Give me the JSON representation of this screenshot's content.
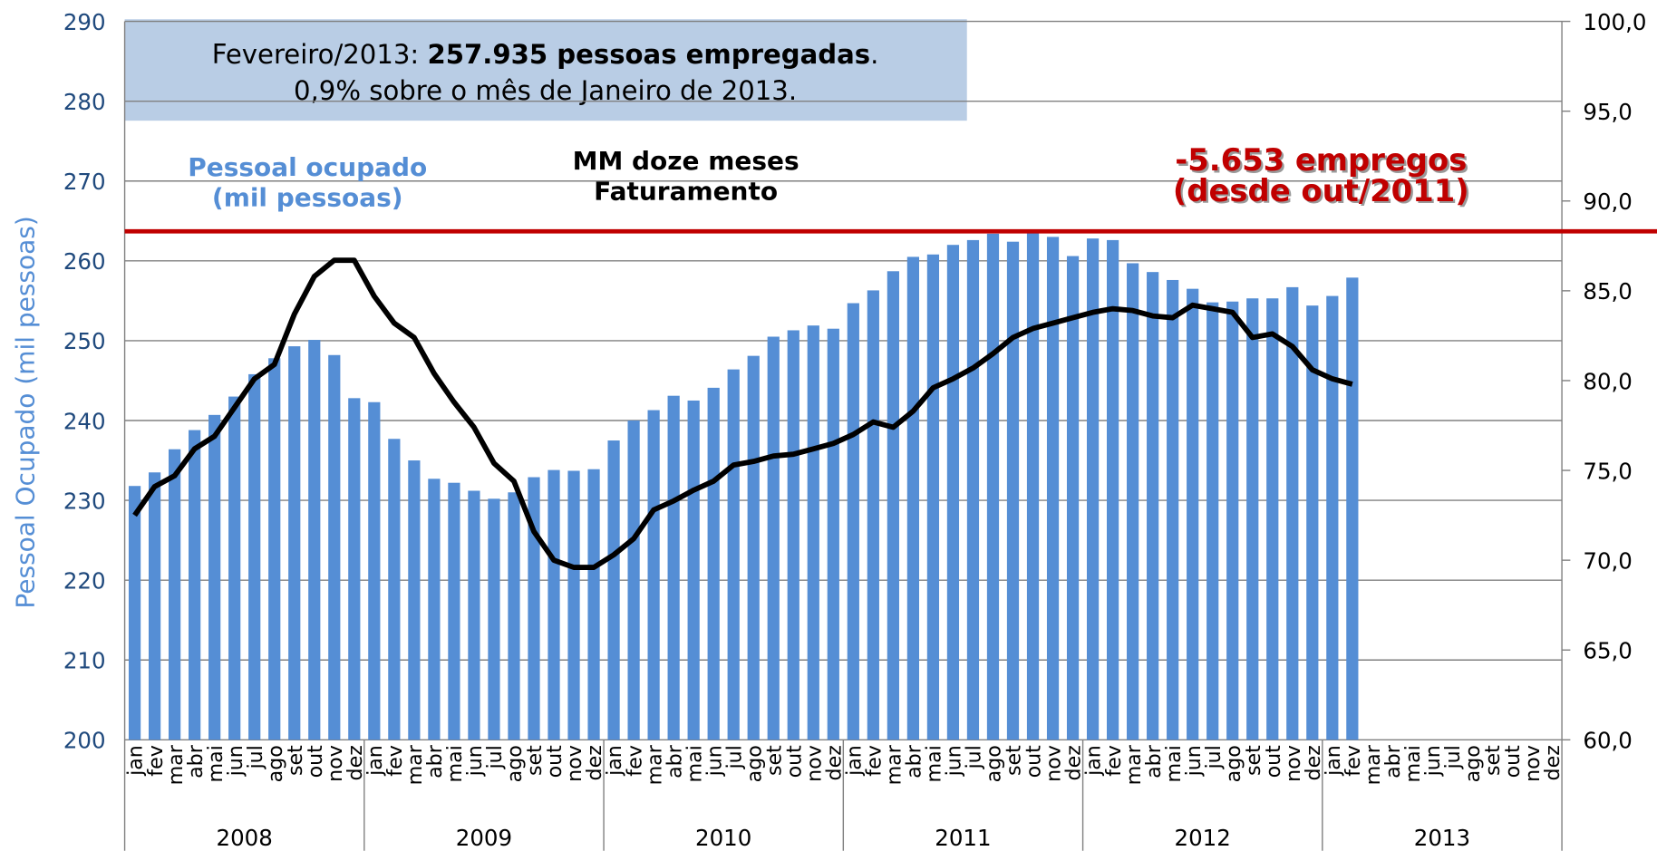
{
  "chart_data": {
    "type": "bar_line",
    "ylabel": "Pessoal Ocupado (mil pessoas)",
    "ylim": [
      200,
      290
    ],
    "yticks": [
      200,
      210,
      220,
      230,
      240,
      250,
      260,
      270,
      280,
      290
    ],
    "y2lim": [
      60,
      100
    ],
    "y2ticks": [
      {
        "value": 60,
        "label": "60,0"
      },
      {
        "value": 65,
        "label": "65,0"
      },
      {
        "value": 70,
        "label": "70,0"
      },
      {
        "value": 75,
        "label": "75,0"
      },
      {
        "value": 80,
        "label": "80,0"
      },
      {
        "value": 85,
        "label": "85,0"
      },
      {
        "value": 90,
        "label": "90,0"
      },
      {
        "value": 95,
        "label": "95,0"
      },
      {
        "value": 100,
        "label": "100,0"
      }
    ],
    "grid": true,
    "years": [
      "2008",
      "2009",
      "2010",
      "2011",
      "2012",
      "2013"
    ],
    "categories": [
      "jan",
      "fev",
      "mar",
      "abr",
      "mai",
      "jun",
      "jul",
      "ago",
      "set",
      "out",
      "nov",
      "dez",
      "jan",
      "fev",
      "mar",
      "abr",
      "mai",
      "jun",
      "jul",
      "ago",
      "set",
      "out",
      "nov",
      "dez",
      "jan",
      "fev",
      "mar",
      "abr",
      "mai",
      "jun",
      "jul",
      "ago",
      "set",
      "out",
      "nov",
      "dez",
      "jan",
      "fev",
      "mar",
      "abr",
      "mai",
      "jun",
      "jul",
      "ago",
      "set",
      "out",
      "nov",
      "dez",
      "jan",
      "fev",
      "mar",
      "abr",
      "mai",
      "jun",
      "jul",
      "ago",
      "set",
      "out",
      "nov",
      "dez",
      "jan",
      "fev",
      "mar",
      "abr",
      "mai",
      "jun",
      "jul",
      "ago",
      "set",
      "out",
      "nov",
      "dez"
    ],
    "series": [
      {
        "name_lines": [
          "Pessoal ocupado",
          "(mil pessoas)"
        ],
        "color": "#558ed5",
        "kind": "bar",
        "values": [
          231.8,
          233.5,
          236.4,
          238.8,
          240.7,
          243,
          245.8,
          247.8,
          249.3,
          250.1,
          248.2,
          242.8,
          242.3,
          237.7,
          235,
          232.7,
          232.2,
          231.2,
          230.2,
          231,
          232.9,
          233.8,
          233.7,
          233.9,
          237.5,
          240,
          241.3,
          243.1,
          242.5,
          244.1,
          246.4,
          248.1,
          250.5,
          251.3,
          251.9,
          251.5,
          254.7,
          256.3,
          258.7,
          260.5,
          260.8,
          262,
          262.6,
          263.4,
          262.4,
          263.6,
          263,
          260.6,
          262.8,
          262.6,
          259.7,
          258.6,
          257.6,
          256.5,
          254.8,
          254.9,
          255.3,
          255.3,
          256.7,
          254.4,
          255.6,
          257.9,
          null,
          null,
          null,
          null,
          null,
          null,
          null,
          null,
          null,
          null
        ]
      },
      {
        "name_lines": [
          "MM doze meses",
          "Faturamento"
        ],
        "color": "#000000",
        "kind": "line",
        "axis": "y2",
        "values": [
          72.5,
          74.1,
          74.7,
          76.2,
          76.9,
          78.5,
          80.1,
          80.9,
          83.7,
          85.8,
          86.7,
          86.7,
          84.7,
          83.2,
          82.4,
          80.4,
          78.8,
          77.4,
          75.4,
          74.4,
          71.6,
          70,
          69.6,
          69.6,
          70.3,
          71.2,
          72.8,
          73.3,
          73.9,
          74.4,
          75.3,
          75.5,
          75.8,
          75.9,
          76.2,
          76.5,
          77,
          77.7,
          77.4,
          78.3,
          79.6,
          80.1,
          80.7,
          81.5,
          82.4,
          82.9,
          83.2,
          83.5,
          83.8,
          84,
          83.9,
          83.6,
          83.5,
          84.2,
          84,
          83.8,
          82.4,
          82.6,
          81.9,
          80.6,
          80.1,
          79.8,
          null,
          null,
          null,
          null,
          null,
          null,
          null,
          null,
          null,
          null
        ]
      }
    ],
    "reference_line": {
      "value": 263.7,
      "color": "#c00000",
      "label_lines": [
        "-5.653 empregos",
        "(desde out/2011)"
      ]
    },
    "box": {
      "line1_prefix": "Fevereiro/2013: ",
      "line1_bold": "257.935 pessoas empregadas",
      "line1_suffix": ".",
      "line2": "0,9% sobre o mês de Janeiro de 2013."
    }
  }
}
